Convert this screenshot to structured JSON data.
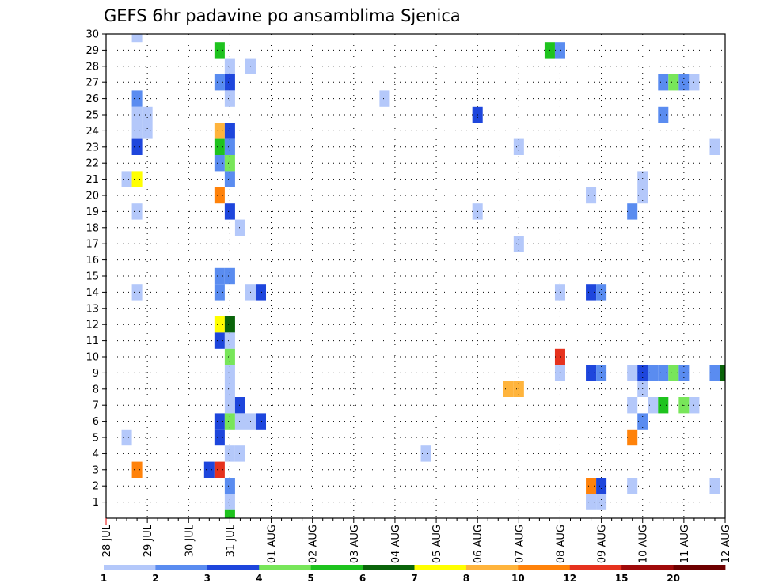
{
  "chart_data": {
    "type": "heatmap",
    "title": "GEFS 6hr padavine po ansamblima Sjenica",
    "xlabel": "",
    "ylabel": "",
    "x_tick_labels": [
      "28 JUL",
      "29 JUL",
      "30 JUL",
      "31 JUL",
      "01 AUG",
      "02 AUG",
      "03 AUG",
      "04 AUG",
      "05 AUG",
      "06 AUG",
      "07 AUG",
      "08 AUG",
      "09 AUG",
      "10 AUG",
      "11 AUG",
      "12 AUG"
    ],
    "y_tick_labels": [
      "1",
      "2",
      "3",
      "4",
      "5",
      "6",
      "7",
      "8",
      "9",
      "10",
      "11",
      "12",
      "13",
      "14",
      "15",
      "16",
      "17",
      "18",
      "19",
      "20",
      "21",
      "22",
      "23",
      "24",
      "25",
      "26",
      "27",
      "28",
      "29",
      "30"
    ],
    "xlim_steps": [
      0,
      60
    ],
    "ylim": [
      0,
      30
    ],
    "x_step_hours": 6,
    "grid": true,
    "colorbar": {
      "labels": [
        "1",
        "2",
        "3",
        "4",
        "5",
        "6",
        "7",
        "8",
        "10",
        "12",
        "15",
        "20"
      ],
      "colors": [
        "#b4c8fa",
        "#5a8cf0",
        "#1e46dc",
        "#78e65a",
        "#1ec31e",
        "#0a640a",
        "#ffff00",
        "#ffb43c",
        "#ff820a",
        "#e6321e",
        "#a00a0a",
        "#6e0000"
      ]
    },
    "cells": [
      [
        3,
        30,
        1
      ],
      [
        3,
        26,
        2
      ],
      [
        3,
        25,
        1
      ],
      [
        3,
        24,
        1
      ],
      [
        3,
        23,
        3
      ],
      [
        3,
        19,
        1
      ],
      [
        3,
        14,
        1
      ],
      [
        3,
        3,
        9
      ],
      [
        2,
        21,
        1
      ],
      [
        2,
        5,
        1
      ],
      [
        3,
        21,
        7
      ],
      [
        4,
        25,
        1
      ],
      [
        4,
        24,
        1
      ],
      [
        11,
        29,
        5
      ],
      [
        11,
        27,
        2
      ],
      [
        11,
        24,
        8
      ],
      [
        11,
        23,
        5
      ],
      [
        11,
        22,
        2
      ],
      [
        11,
        20,
        9
      ],
      [
        11,
        15,
        2
      ],
      [
        11,
        14,
        2
      ],
      [
        11,
        12,
        7
      ],
      [
        11,
        11,
        3
      ],
      [
        11,
        6,
        3
      ],
      [
        11,
        5,
        3
      ],
      [
        10,
        3,
        3
      ],
      [
        11,
        3,
        10
      ],
      [
        12,
        28,
        1
      ],
      [
        12,
        27,
        3
      ],
      [
        12,
        26,
        1
      ],
      [
        12,
        24,
        3
      ],
      [
        12,
        23,
        2
      ],
      [
        12,
        22,
        4
      ],
      [
        12,
        21,
        2
      ],
      [
        12,
        19,
        3
      ],
      [
        12,
        15,
        2
      ],
      [
        12,
        12,
        6
      ],
      [
        12,
        11,
        1
      ],
      [
        12,
        10,
        4
      ],
      [
        12,
        9,
        1
      ],
      [
        12,
        8,
        1
      ],
      [
        12,
        7,
        1
      ],
      [
        12,
        6,
        4
      ],
      [
        12,
        4,
        1
      ],
      [
        12,
        2,
        2
      ],
      [
        12,
        1,
        1
      ],
      [
        12,
        0,
        5
      ],
      [
        13,
        18,
        1
      ],
      [
        13,
        7,
        3
      ],
      [
        13,
        6,
        1
      ],
      [
        13,
        4,
        1
      ],
      [
        14,
        28,
        1
      ],
      [
        14,
        14,
        1
      ],
      [
        15,
        14,
        3
      ],
      [
        14,
        6,
        1
      ],
      [
        15,
        6,
        3
      ],
      [
        27,
        26,
        1
      ],
      [
        31,
        4,
        1
      ],
      [
        36,
        25,
        3
      ],
      [
        36,
        19,
        1
      ],
      [
        39,
        8,
        8
      ],
      [
        40,
        8,
        8
      ],
      [
        40,
        23,
        1
      ],
      [
        40,
        17,
        1
      ],
      [
        43,
        29,
        5
      ],
      [
        44,
        29,
        2
      ],
      [
        44,
        14,
        1
      ],
      [
        44,
        10,
        10
      ],
      [
        44,
        9,
        1
      ],
      [
        47,
        20,
        1
      ],
      [
        47,
        14,
        3
      ],
      [
        48,
        14,
        2
      ],
      [
        47,
        9,
        3
      ],
      [
        48,
        9,
        2
      ],
      [
        47,
        2,
        9
      ],
      [
        48,
        2,
        3
      ],
      [
        47,
        1,
        1
      ],
      [
        48,
        1,
        1
      ],
      [
        51,
        19,
        2
      ],
      [
        51,
        9,
        1
      ],
      [
        51,
        7,
        1
      ],
      [
        51,
        5,
        9
      ],
      [
        51,
        2,
        1
      ],
      [
        52,
        21,
        1
      ],
      [
        52,
        20,
        1
      ],
      [
        52,
        9,
        3
      ],
      [
        52,
        8,
        1
      ],
      [
        52,
        6,
        2
      ],
      [
        53,
        9,
        2
      ],
      [
        53,
        7,
        1
      ],
      [
        54,
        27,
        2
      ],
      [
        54,
        25,
        2
      ],
      [
        54,
        9,
        2
      ],
      [
        54,
        7,
        5
      ],
      [
        55,
        27,
        4
      ],
      [
        55,
        9,
        4
      ],
      [
        56,
        27,
        2
      ],
      [
        56,
        9,
        2
      ],
      [
        56,
        7,
        4
      ],
      [
        57,
        27,
        1
      ],
      [
        57,
        7,
        1
      ],
      [
        59,
        23,
        1
      ],
      [
        59,
        9,
        2
      ],
      [
        60,
        9,
        6
      ],
      [
        59,
        2,
        1
      ]
    ]
  }
}
